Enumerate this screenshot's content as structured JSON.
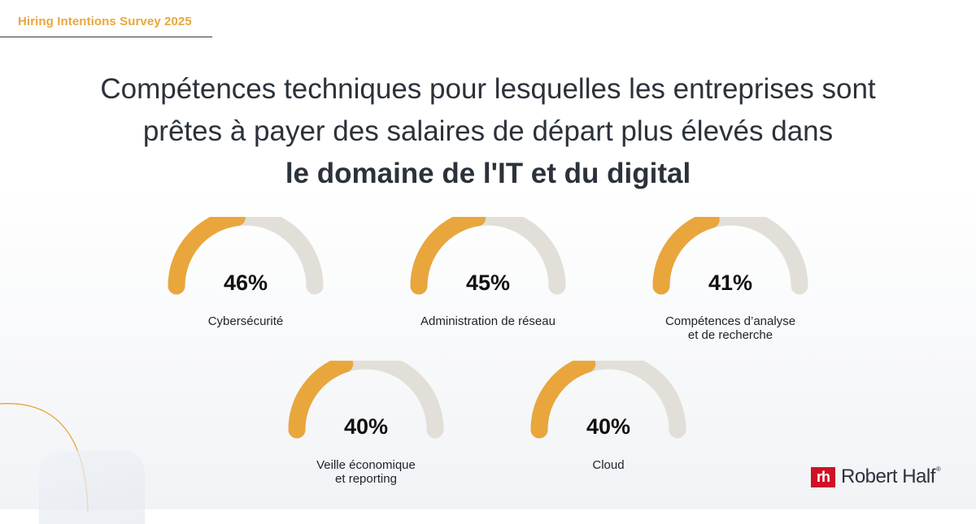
{
  "header": {
    "survey_label": "Hiring Intentions Survey 2025",
    "title_line1": "Compétences techniques pour lesquelles les entreprises sont",
    "title_line2": "prêtes à payer des salaires de départ plus élevés dans",
    "title_line3": "le domaine de l'IT et du digital"
  },
  "chart_data": {
    "type": "gauge",
    "unit": "%",
    "max": 100,
    "items": [
      {
        "label": "Cybersécurité",
        "value": 46,
        "display": "46%"
      },
      {
        "label": "Administration de réseau",
        "value": 45,
        "display": "45%"
      },
      {
        "label": "Compétences d’analyse\net de recherche",
        "value": 41,
        "display": "41%"
      },
      {
        "label": "Veille économique\net reporting",
        "value": 40,
        "display": "40%"
      },
      {
        "label": "Cloud",
        "value": 40,
        "display": "40%"
      }
    ]
  },
  "colors": {
    "accent": "#e9a63c",
    "track": "#e2dfd9",
    "title": "#2b323b",
    "brand_red": "#ce1126"
  },
  "brand": {
    "logo_mark": "rh",
    "logo_text": "Robert Half",
    "registered": "®"
  }
}
